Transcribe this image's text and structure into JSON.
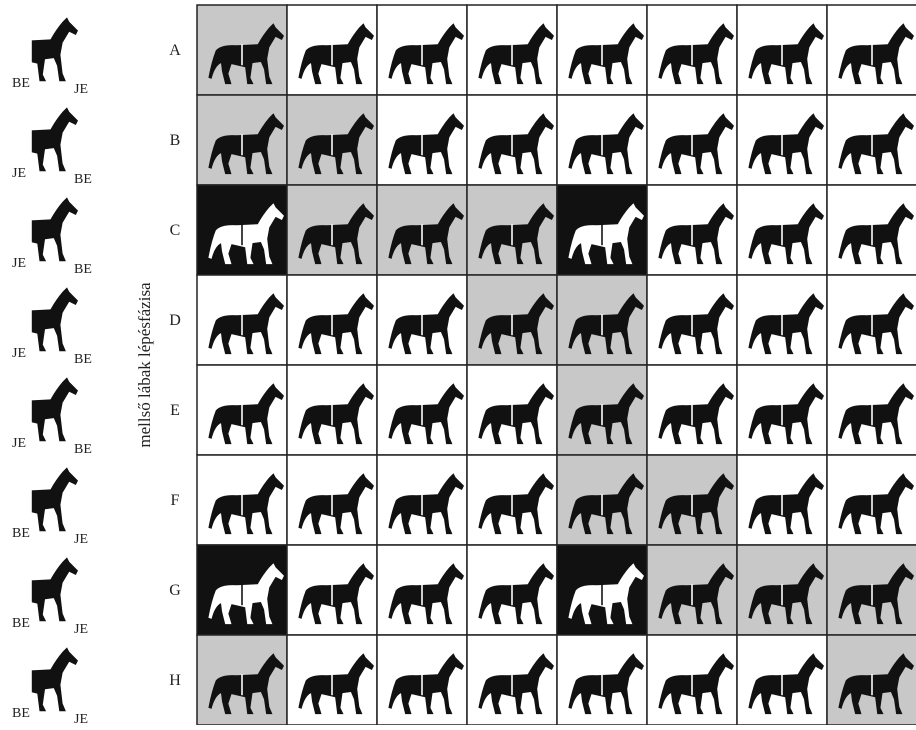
{
  "axis_label": "mellső lábak lépésfázisa",
  "rows": [
    {
      "label": "A",
      "left_icon": {
        "left": "BE",
        "right": "JE"
      },
      "cells": [
        "gray",
        "white",
        "white",
        "white",
        "white",
        "white",
        "white",
        "white"
      ]
    },
    {
      "label": "B",
      "left_icon": {
        "left": "JE",
        "right": "BE"
      },
      "cells": [
        "gray",
        "gray",
        "white",
        "white",
        "white",
        "white",
        "white",
        "white"
      ]
    },
    {
      "label": "C",
      "left_icon": {
        "left": "JE",
        "right": "BE"
      },
      "cells": [
        "black",
        "gray",
        "gray",
        "gray",
        "black",
        "white",
        "white",
        "white"
      ]
    },
    {
      "label": "D",
      "left_icon": {
        "left": "JE",
        "right": "BE"
      },
      "cells": [
        "white",
        "white",
        "white",
        "gray",
        "gray",
        "white",
        "white",
        "white"
      ]
    },
    {
      "label": "E",
      "left_icon": {
        "left": "JE",
        "right": "BE"
      },
      "cells": [
        "white",
        "white",
        "white",
        "white",
        "gray",
        "white",
        "white",
        "white"
      ]
    },
    {
      "label": "F",
      "left_icon": {
        "left": "BE",
        "right": "JE"
      },
      "cells": [
        "white",
        "white",
        "white",
        "white",
        "gray",
        "gray",
        "white",
        "white"
      ]
    },
    {
      "label": "G",
      "left_icon": {
        "left": "BE",
        "right": "JE"
      },
      "cells": [
        "black",
        "white",
        "white",
        "white",
        "black",
        "gray",
        "gray",
        "gray"
      ]
    },
    {
      "label": "H",
      "left_icon": {
        "left": "BE",
        "right": "JE"
      },
      "cells": [
        "gray",
        "white",
        "white",
        "white",
        "white",
        "white",
        "white",
        "gray"
      ]
    }
  ]
}
